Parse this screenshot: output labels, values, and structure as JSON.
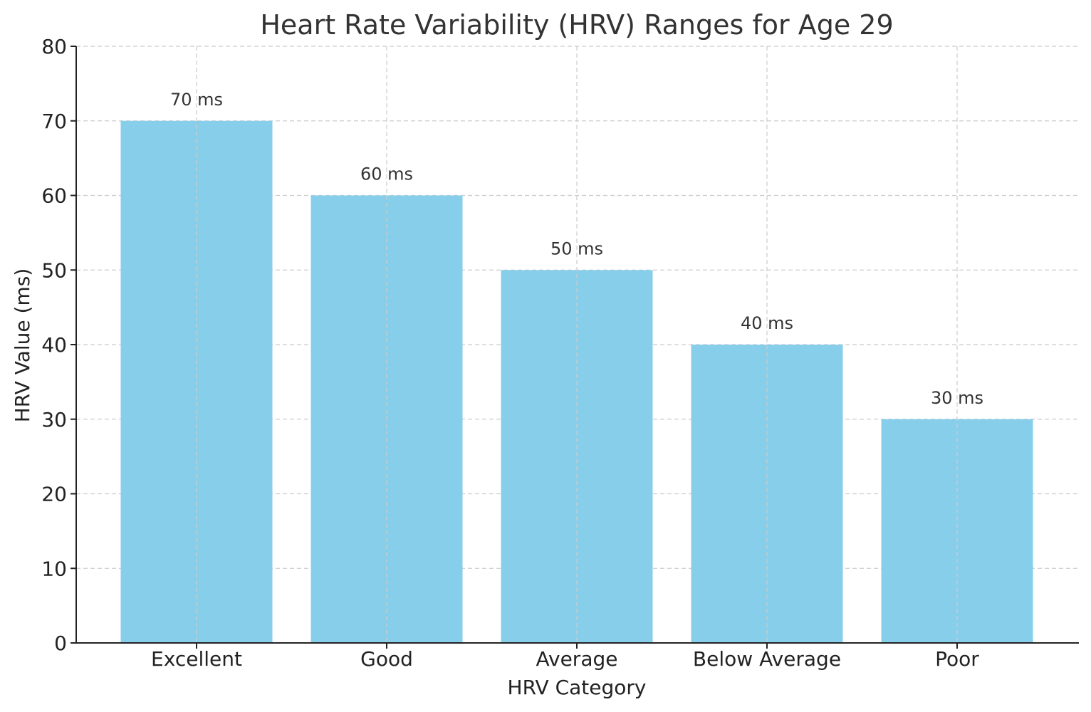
{
  "chart_data": {
    "type": "bar",
    "title": "Heart Rate Variability (HRV) Ranges for Age 29",
    "xlabel": "HRV Category",
    "ylabel": "HRV Value (ms)",
    "categories": [
      "Excellent",
      "Good",
      "Average",
      "Below Average",
      "Poor"
    ],
    "values": [
      70,
      60,
      50,
      40,
      30
    ],
    "data_labels": [
      "70 ms",
      "60 ms",
      "50 ms",
      "40 ms",
      "30 ms"
    ],
    "ylim": [
      0,
      80
    ],
    "yticks": [
      0,
      10,
      20,
      30,
      40,
      50,
      60,
      70,
      80
    ],
    "grid": true,
    "bar_color": "#87CEEB"
  }
}
